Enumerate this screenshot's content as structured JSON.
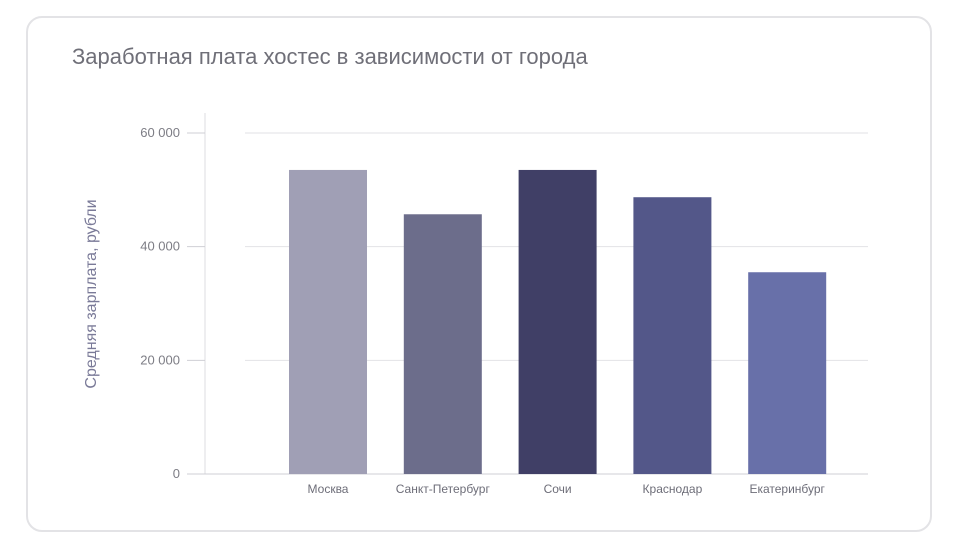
{
  "chart_data": {
    "type": "bar",
    "title": "Заработная плата хостес в зависимости от города",
    "ylabel": "Средняя зарплата, рубли",
    "xlabel": "",
    "categories": [
      "Москва",
      "Санкт-Петербург",
      "Сочи",
      "Краснодар",
      "Екатеринбург"
    ],
    "values": [
      53500,
      45700,
      53500,
      48700,
      35500
    ],
    "bar_colors": [
      "#a09fb5",
      "#6c6d8b",
      "#403f66",
      "#535789",
      "#6870a9"
    ],
    "ylim": [
      0,
      60000
    ],
    "yticks": [
      0,
      20000,
      40000,
      60000
    ],
    "ytick_labels": [
      "0",
      "20 000",
      "40 000",
      "60 000"
    ],
    "grid": true,
    "legend": "none"
  }
}
